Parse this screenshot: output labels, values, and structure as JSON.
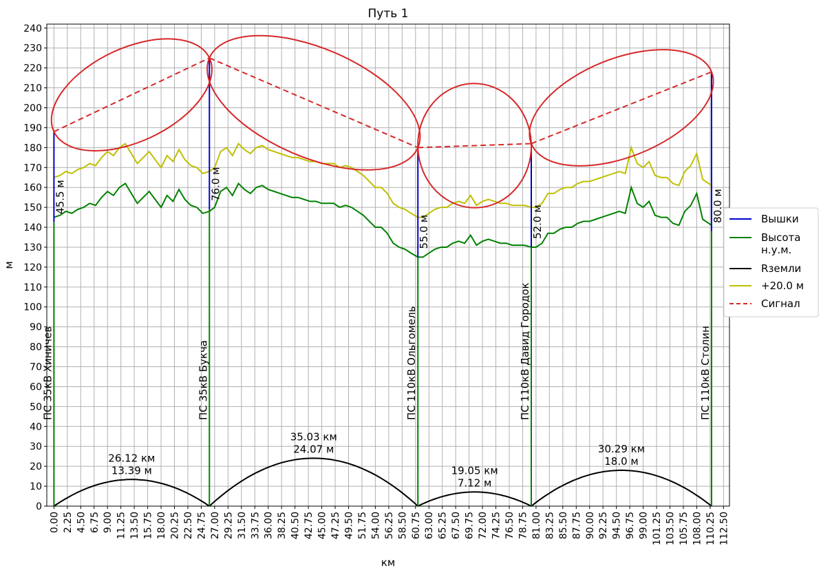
{
  "chart_data": {
    "type": "line",
    "title": "Путь 1",
    "xlabel": "км",
    "ylabel": "м",
    "xlim": [
      -1.2,
      113.5
    ],
    "ylim": [
      0,
      242
    ],
    "grid": true,
    "legend_position": "right",
    "x_ticks": [
      "0.00",
      "2.25",
      "4.50",
      "6.75",
      "9.00",
      "11.25",
      "13.50",
      "15.75",
      "18.00",
      "20.25",
      "22.50",
      "24.75",
      "27.00",
      "29.25",
      "31.50",
      "33.75",
      "36.00",
      "38.25",
      "40.50",
      "42.75",
      "45.00",
      "47.25",
      "49.50",
      "51.75",
      "54.00",
      "56.25",
      "58.50",
      "60.75",
      "63.00",
      "65.25",
      "67.50",
      "69.75",
      "72.00",
      "74.25",
      "76.50",
      "78.75",
      "81.00",
      "83.25",
      "85.50",
      "87.75",
      "90.00",
      "92.25",
      "94.50",
      "96.75",
      "99.00",
      "101.25",
      "103.50",
      "105.75",
      "108.00",
      "110.25",
      "112.50"
    ],
    "y_ticks": [
      0,
      10,
      20,
      30,
      40,
      50,
      60,
      70,
      80,
      90,
      100,
      110,
      120,
      130,
      140,
      150,
      160,
      170,
      180,
      190,
      200,
      210,
      220,
      230,
      240
    ],
    "legend": [
      {
        "label": "Вышки",
        "color": "#0000cc",
        "style": "solid"
      },
      {
        "label": "Высота н.у.м.",
        "line1": "Высота",
        "line2": "н.у.м.",
        "color": "#008000",
        "style": "solid"
      },
      {
        "label": "Rземли",
        "color": "#000000",
        "style": "solid"
      },
      {
        "label": "+20.0 м",
        "color": "#bfbf00",
        "style": "solid"
      },
      {
        "label": "Сигнал",
        "color": "#d62728",
        "style": "dashed"
      }
    ],
    "stations": [
      {
        "name": "ПС 35кВ Хиничев",
        "x": 0.0,
        "ground": 142.5,
        "top": 188.0,
        "tower_label": "45.5 м"
      },
      {
        "name": "ПС 35кВ Букча",
        "x": 26.12,
        "ground": 149.0,
        "top": 225.0,
        "tower_label": "76.0 м"
      },
      {
        "name": "ПС 110кВ Ольгомель",
        "x": 61.15,
        "ground": 125.0,
        "top": 180.0,
        "tower_label": "55.0 м"
      },
      {
        "name": "ПС 110кВ Давид Городок",
        "x": 80.2,
        "ground": 130.0,
        "top": 182.0,
        "tower_label": "52.0 м"
      },
      {
        "name": "ПС 110кВ Столин",
        "x": 110.49,
        "ground": 138.0,
        "top": 218.0,
        "tower_label": "80.0 м"
      }
    ],
    "segments": [
      {
        "x0": 0.0,
        "x1": 26.12,
        "distance_label": "26.12 км",
        "bulge_label": "13.39 м",
        "bulge": 13.39,
        "fresnel_r": 9.0
      },
      {
        "x0": 26.12,
        "x1": 61.15,
        "distance_label": "35.03 км",
        "bulge_label": "24.07 м",
        "bulge": 24.07,
        "fresnel_r": 10.5
      },
      {
        "x0": 61.15,
        "x1": 80.2,
        "distance_label": "19.05 км",
        "bulge_label": "7.12 м",
        "bulge": 7.12,
        "fresnel_r": 12.0
      },
      {
        "x0": 80.2,
        "x1": 110.49,
        "distance_label": "30.29 км",
        "bulge_label": "18.0 м",
        "bulge": 18.0,
        "fresnel_r": 9.5
      }
    ],
    "terrain_profile": {
      "x": [
        0,
        1,
        2,
        3,
        4,
        5,
        6,
        7,
        8,
        9,
        10,
        11,
        12,
        13,
        14,
        15,
        16,
        17,
        18,
        19,
        20,
        21,
        22,
        23,
        24,
        25,
        26.12,
        27,
        28,
        29,
        30,
        31,
        32,
        33,
        34,
        35,
        36,
        37,
        38,
        39,
        40,
        41,
        42,
        43,
        44,
        45,
        46,
        47,
        48,
        49,
        50,
        51,
        52,
        53,
        54,
        55,
        56,
        57,
        58,
        59,
        60,
        61.15,
        62,
        63,
        64,
        65,
        66,
        67,
        68,
        69,
        70,
        71,
        72,
        73,
        74,
        75,
        76,
        77,
        78,
        79,
        80.2,
        81,
        82,
        83,
        84,
        85,
        86,
        87,
        88,
        89,
        90,
        91,
        92,
        93,
        94,
        95,
        96,
        97,
        98,
        99,
        100,
        101,
        102,
        103,
        104,
        105,
        106,
        107,
        108,
        109,
        110.49
      ],
      "y": [
        145,
        146,
        148,
        147,
        149,
        150,
        152,
        151,
        155,
        158,
        156,
        160,
        162,
        157,
        152,
        155,
        158,
        154,
        150,
        156,
        153,
        159,
        154,
        151,
        150,
        147,
        148,
        150,
        158,
        160,
        156,
        162,
        159,
        157,
        160,
        161,
        159,
        158,
        157,
        156,
        155,
        155,
        154,
        153,
        153,
        152,
        152,
        152,
        150,
        151,
        150,
        148,
        146,
        143,
        140,
        140,
        137,
        132,
        130,
        129,
        127,
        125,
        125,
        127,
        129,
        130,
        130,
        132,
        133,
        132,
        136,
        131,
        133,
        134,
        133,
        132,
        132,
        131,
        131,
        131,
        130,
        130,
        132,
        137,
        137,
        139,
        140,
        140,
        142,
        143,
        143,
        144,
        145,
        146,
        147,
        148,
        147,
        160,
        152,
        150,
        153,
        146,
        145,
        145,
        142,
        141,
        148,
        151,
        157,
        144,
        141
      ]
    },
    "offset_label": "+20.0 м",
    "offset_m": 20
  }
}
